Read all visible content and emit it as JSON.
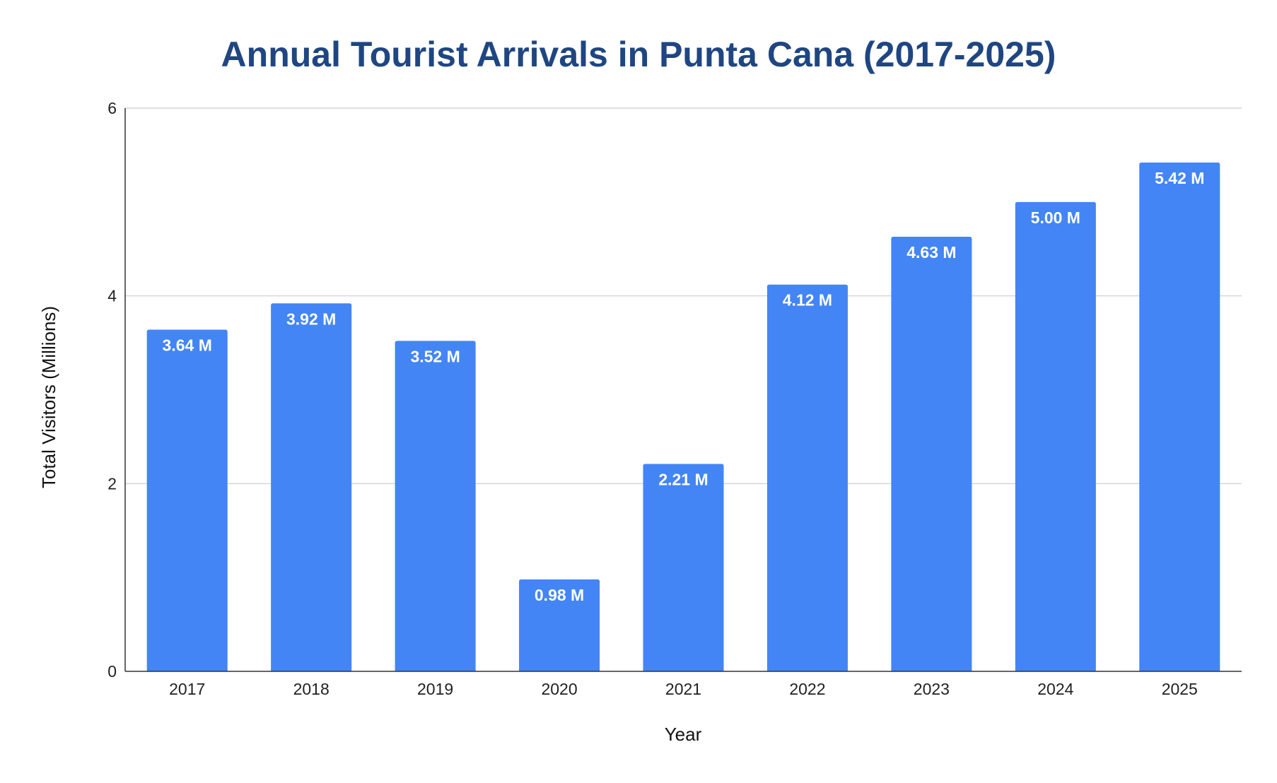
{
  "chart_data": {
    "type": "bar",
    "title": "Annual Tourist Arrivals in Punta Cana (2017-2025)",
    "xlabel": "Year",
    "ylabel": "Total Visitors (Millions)",
    "categories": [
      "2017",
      "2018",
      "2019",
      "2020",
      "2021",
      "2022",
      "2023",
      "2024",
      "2025"
    ],
    "values": [
      3.64,
      3.92,
      3.52,
      0.98,
      2.21,
      4.12,
      4.63,
      5.0,
      5.42
    ],
    "data_labels": [
      "3.64 M",
      "3.92 M",
      "3.52 M",
      "0.98 M",
      "2.21 M",
      "4.12 M",
      "4.63 M",
      "5.00 M",
      "5.42 M"
    ],
    "ylim": [
      0,
      6
    ],
    "yticks": [
      "0",
      "2",
      "4",
      "6"
    ],
    "grid": true,
    "legend": "none",
    "colors": {
      "bar": "#4385f4",
      "title": "#1f4682",
      "grid": "#cccccc",
      "axis": "#333333"
    }
  }
}
